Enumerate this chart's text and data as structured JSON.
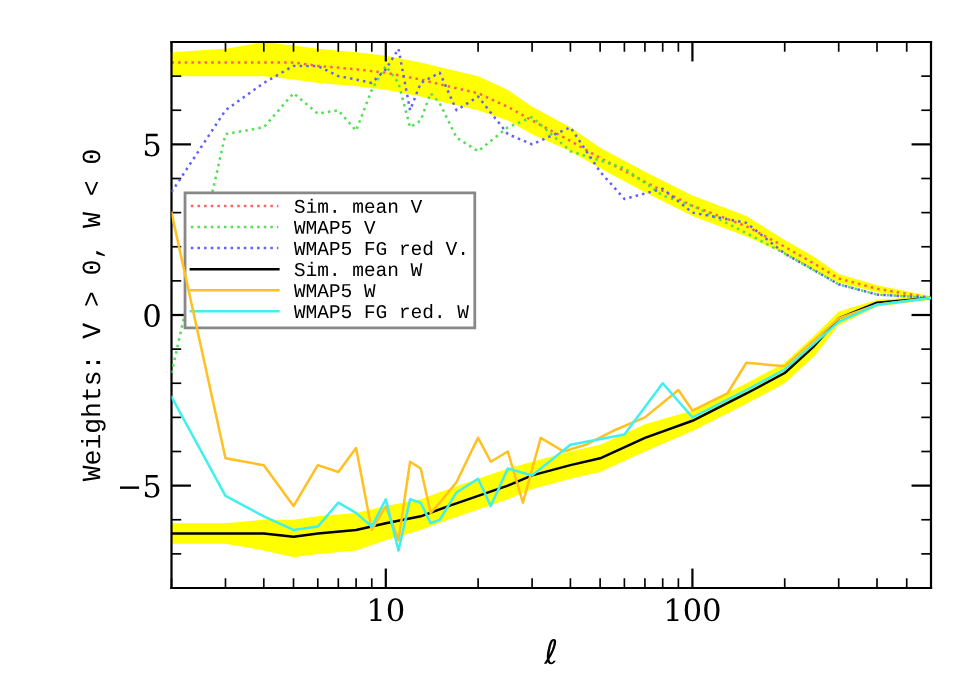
{
  "chart_data": {
    "type": "line",
    "xlabel": "ℓ",
    "ylabel": "Weights: V > 0, W < 0",
    "log": "x",
    "xlim": [
      2,
      600
    ],
    "xticks": [
      10,
      100
    ],
    "ylim": [
      -8,
      8
    ],
    "yticks": [
      -5,
      0,
      5
    ],
    "grid": false,
    "legend": "center left",
    "series": [
      {
        "name": "Sim. mean V",
        "color": "#ff6060",
        "line_style": "dotted",
        "x": [
          2,
          3,
          4,
          5,
          6,
          8,
          10,
          13,
          16,
          20,
          25,
          30,
          40,
          50,
          70,
          100,
          150,
          200,
          250,
          300,
          400,
          600
        ],
        "values": [
          7.4,
          7.4,
          7.4,
          7.4,
          7.3,
          7.2,
          7.1,
          6.9,
          6.7,
          6.5,
          6.1,
          5.7,
          5.1,
          4.6,
          3.9,
          3.2,
          2.6,
          2.0,
          1.5,
          1.07,
          0.77,
          0.5
        ],
        "lower": [
          7.0,
          7.0,
          7.0,
          6.9,
          6.8,
          6.7,
          6.6,
          6.4,
          6.2,
          6.0,
          5.7,
          5.3,
          4.8,
          4.3,
          3.6,
          2.9,
          2.3,
          1.8,
          1.3,
          0.95,
          0.67,
          0.45
        ],
        "upper": [
          7.7,
          7.8,
          8.0,
          7.9,
          7.8,
          7.7,
          7.6,
          7.4,
          7.2,
          7.0,
          6.6,
          6.1,
          5.5,
          4.9,
          4.2,
          3.5,
          2.9,
          2.2,
          1.7,
          1.2,
          0.87,
          0.55
        ]
      },
      {
        "name": "WMAP5 V",
        "color": "#50e050",
        "line_style": "dotted",
        "x": [
          2,
          3,
          4,
          5,
          6,
          7,
          8,
          9,
          10,
          11,
          12,
          13,
          14,
          15,
          17,
          20,
          25,
          30,
          40,
          60,
          80,
          100,
          150,
          200,
          300,
          400,
          600
        ],
        "values": [
          -1.7,
          5.3,
          5.5,
          6.5,
          5.9,
          6.0,
          5.4,
          6.6,
          7.3,
          6.8,
          5.5,
          5.7,
          6.5,
          6.2,
          5.2,
          4.8,
          5.5,
          5.8,
          4.8,
          4.3,
          3.5,
          3.2,
          2.4,
          1.8,
          0.9,
          0.6,
          0.5
        ]
      },
      {
        "name": "WMAP5 FG red V.",
        "color": "#6060ff",
        "line_style": "dotted",
        "x": [
          2,
          3,
          4,
          5,
          6,
          7,
          8,
          9,
          10,
          11,
          12,
          13,
          15,
          17,
          20,
          25,
          30,
          40,
          50,
          60,
          80,
          100,
          150,
          200,
          300,
          400,
          600
        ],
        "values": [
          3.6,
          6.0,
          6.8,
          7.3,
          7.3,
          7.0,
          6.9,
          6.8,
          7.2,
          7.8,
          6.0,
          6.8,
          7.1,
          6.0,
          6.4,
          5.3,
          5.0,
          5.5,
          4.2,
          3.4,
          3.7,
          3.0,
          2.7,
          1.8,
          0.9,
          0.6,
          0.5
        ]
      },
      {
        "name": "Sim. mean W",
        "color": "#000000",
        "line_style": "solid",
        "x": [
          2,
          3,
          4,
          5,
          6,
          8,
          10,
          13,
          16,
          20,
          25,
          30,
          40,
          50,
          70,
          100,
          150,
          200,
          250,
          300,
          400,
          600
        ],
        "values": [
          -6.4,
          -6.4,
          -6.4,
          -6.5,
          -6.4,
          -6.3,
          -6.1,
          -5.9,
          -5.6,
          -5.3,
          -5.0,
          -4.7,
          -4.4,
          -4.2,
          -3.6,
          -3.1,
          -2.3,
          -1.7,
          -0.9,
          -0.1,
          0.36,
          0.5
        ],
        "lower": [
          -6.7,
          -6.7,
          -6.9,
          -7.1,
          -7.0,
          -6.9,
          -6.6,
          -6.3,
          -6.0,
          -5.7,
          -5.4,
          -5.1,
          -4.8,
          -4.6,
          -4.0,
          -3.4,
          -2.6,
          -2.0,
          -1.2,
          -0.3,
          0.25,
          0.45
        ],
        "upper": [
          -6.1,
          -6.1,
          -6.0,
          -6.0,
          -5.9,
          -5.8,
          -5.6,
          -5.4,
          -5.1,
          -4.8,
          -4.5,
          -4.3,
          -4.0,
          -3.8,
          -3.2,
          -2.8,
          -2.0,
          -1.4,
          -0.6,
          0.1,
          0.45,
          0.55
        ]
      },
      {
        "name": "WMAP5 W",
        "color": "#ffc020",
        "line_style": "solid",
        "x": [
          2,
          3,
          4,
          5,
          6,
          7,
          8,
          9,
          10,
          11,
          12,
          13,
          14,
          15,
          17,
          19,
          20,
          22,
          25,
          28,
          32,
          38,
          45,
          55,
          70,
          90,
          100,
          130,
          150,
          200,
          300,
          400,
          600
        ],
        "values": [
          3.0,
          -4.2,
          -4.4,
          -5.6,
          -4.4,
          -4.6,
          -3.9,
          -6.3,
          -5.6,
          -6.6,
          -4.3,
          -4.5,
          -5.8,
          -5.5,
          -4.9,
          -4.0,
          -3.6,
          -4.3,
          -4.0,
          -5.5,
          -3.6,
          -4.0,
          -3.8,
          -3.4,
          -3.0,
          -2.2,
          -2.8,
          -2.3,
          -1.4,
          -1.5,
          -0.1,
          0.3,
          0.5
        ]
      },
      {
        "name": "WMAP5 FG red. W",
        "color": "#40f0f0",
        "line_style": "solid",
        "x": [
          2,
          3,
          4,
          5,
          6,
          7,
          8,
          9,
          10,
          11,
          12,
          13,
          14,
          15,
          17,
          20,
          22,
          25,
          30,
          40,
          60,
          80,
          100,
          150,
          200,
          300,
          400,
          600
        ],
        "values": [
          -2.4,
          -5.3,
          -5.9,
          -6.3,
          -6.2,
          -5.5,
          -5.8,
          -6.2,
          -5.4,
          -6.9,
          -5.4,
          -5.5,
          -6.1,
          -6.0,
          -5.2,
          -4.8,
          -5.6,
          -4.5,
          -4.7,
          -3.8,
          -3.5,
          -2.0,
          -3.0,
          -2.2,
          -1.6,
          -0.2,
          0.3,
          0.5
        ]
      }
    ]
  }
}
